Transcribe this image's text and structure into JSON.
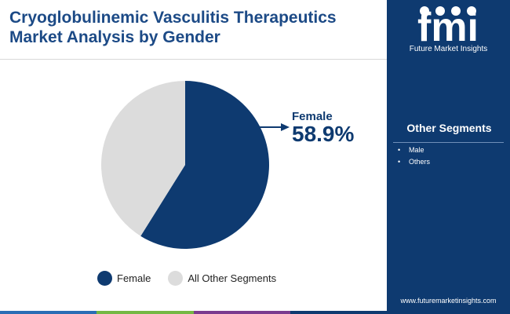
{
  "header": {
    "title": "Cryoglobulinemic Vasculitis Therapeutics Market Analysis by Gender"
  },
  "brand": {
    "logo_text": "fmi",
    "tagline": "Future Market Insights",
    "url": "www.futuremarketinsights.com",
    "logo_icon": "fmi-logo-icon"
  },
  "sidebar": {
    "heading": "Other Segments",
    "items": [
      "Male",
      "Others"
    ]
  },
  "colors": {
    "primary": "#0e3a70",
    "secondary": "#dcdcdc",
    "footer": [
      "#2a6db5",
      "#74b843",
      "#7a3b8f",
      "#0e3a70"
    ]
  },
  "chart_data": {
    "type": "pie",
    "title": "",
    "slices": [
      {
        "label": "Female",
        "value": 58.9,
        "color": "#0e3a70"
      },
      {
        "label": "All Other Segments",
        "value": 41.1,
        "color": "#dcdcdc"
      }
    ],
    "start_angle_deg": 0,
    "direction": "clockwise",
    "callout": {
      "label": "Female",
      "value_text": "58.9%"
    },
    "legend": {
      "position": "bottom",
      "entries": [
        "Female",
        "All Other Segments"
      ]
    }
  }
}
